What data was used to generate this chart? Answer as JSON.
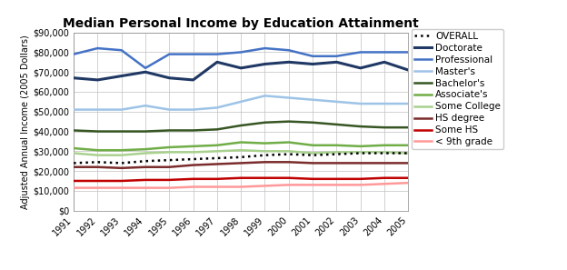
{
  "title": "Median Personal Income by Education Attainment",
  "ylabel": "Adjusted Annual Income (2005 Dollars)",
  "years": [
    1991,
    1992,
    1993,
    1994,
    1995,
    1996,
    1997,
    1998,
    1999,
    2000,
    2001,
    2002,
    2003,
    2004,
    2005
  ],
  "series": {
    "OVERALL": {
      "values": [
        24000,
        24500,
        24000,
        25000,
        25500,
        26000,
        26500,
        27000,
        28000,
        28500,
        28000,
        28500,
        29000,
        29000,
        29000
      ],
      "color": "#000000",
      "linestyle": "dotted",
      "linewidth": 1.8,
      "zorder": 5
    },
    "Doctorate": {
      "values": [
        67000,
        66000,
        68000,
        70000,
        67000,
        66000,
        75000,
        72000,
        74000,
        75000,
        74000,
        75000,
        72000,
        75000,
        71000
      ],
      "color": "#1F3864",
      "linestyle": "solid",
      "linewidth": 2.2,
      "zorder": 6
    },
    "Professional": {
      "values": [
        79000,
        82000,
        81000,
        72000,
        79000,
        79000,
        79000,
        80000,
        82000,
        81000,
        78000,
        78000,
        80000,
        80000,
        80000
      ],
      "color": "#4472C4",
      "linestyle": "solid",
      "linewidth": 1.8,
      "zorder": 4
    },
    "Master's": {
      "values": [
        51000,
        51000,
        51000,
        53000,
        51000,
        51000,
        52000,
        55000,
        58000,
        57000,
        56000,
        55000,
        54000,
        54000,
        54000
      ],
      "color": "#9DC3E6",
      "linestyle": "solid",
      "linewidth": 1.8,
      "zorder": 3
    },
    "Bachelor's": {
      "values": [
        40500,
        40000,
        40000,
        40000,
        40500,
        40500,
        41000,
        43000,
        44500,
        45000,
        44500,
        43500,
        42500,
        42000,
        42000
      ],
      "color": "#375623",
      "linestyle": "solid",
      "linewidth": 1.8,
      "zorder": 3
    },
    "Associate's": {
      "values": [
        31500,
        30500,
        30500,
        31000,
        32000,
        32500,
        33000,
        34500,
        34000,
        34500,
        33000,
        33000,
        32500,
        33000,
        33000
      ],
      "color": "#70AD47",
      "linestyle": "solid",
      "linewidth": 1.8,
      "zorder": 3
    },
    "Some College": {
      "values": [
        29000,
        28000,
        28000,
        29000,
        29500,
        29500,
        30000,
        30500,
        30000,
        30000,
        29000,
        29500,
        29500,
        29500,
        29000
      ],
      "color": "#A9D18E",
      "linestyle": "solid",
      "linewidth": 1.8,
      "zorder": 3
    },
    "HS degree": {
      "values": [
        22000,
        22000,
        21500,
        22000,
        22000,
        23000,
        23500,
        24000,
        24500,
        24500,
        24000,
        24000,
        24000,
        24000,
        24000
      ],
      "color": "#7B2C2C",
      "linestyle": "solid",
      "linewidth": 1.8,
      "zorder": 3
    },
    "Some HS": {
      "values": [
        15000,
        15000,
        15000,
        15500,
        15500,
        16000,
        16000,
        16500,
        16500,
        16500,
        16000,
        16000,
        16000,
        16500,
        16500
      ],
      "color": "#C00000",
      "linestyle": "solid",
      "linewidth": 1.8,
      "zorder": 3
    },
    "< 9th grade": {
      "values": [
        11500,
        11500,
        11500,
        11500,
        11500,
        12000,
        12000,
        12000,
        12500,
        13000,
        13000,
        13000,
        13000,
        13500,
        14000
      ],
      "color": "#FF9999",
      "linestyle": "solid",
      "linewidth": 1.8,
      "zorder": 3
    }
  },
  "ylim": [
    0,
    90000
  ],
  "yticks": [
    0,
    10000,
    20000,
    30000,
    40000,
    50000,
    60000,
    70000,
    80000,
    90000
  ],
  "background_color": "#FFFFFF",
  "grid_color": "#C0C0C0",
  "title_fontsize": 10,
  "axis_label_fontsize": 7,
  "tick_fontsize": 7,
  "legend_fontsize": 7.5
}
